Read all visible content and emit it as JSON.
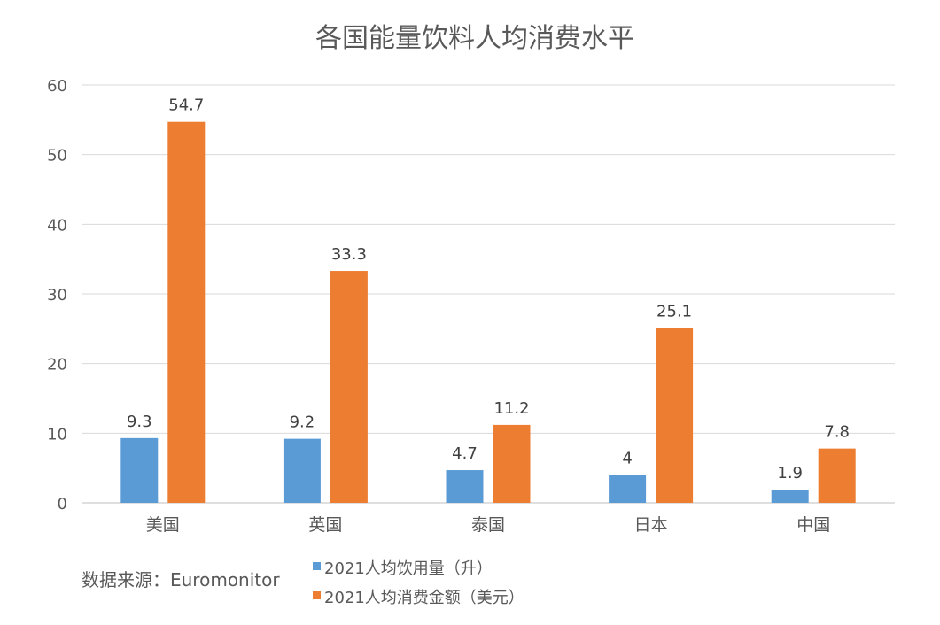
{
  "chart_data": {
    "type": "bar",
    "title": "各国能量饮料人均消费水平",
    "categories": [
      "美国",
      "英国",
      "泰国",
      "日本",
      "中国"
    ],
    "series": [
      {
        "name": "2021人均饮用量（升）",
        "values": [
          9.3,
          9.2,
          4.7,
          4,
          1.9
        ],
        "color": "#5B9BD5"
      },
      {
        "name": "2021人均消费金额（美元）",
        "values": [
          54.7,
          33.3,
          11.2,
          25.1,
          7.8
        ],
        "color": "#ED7D31"
      }
    ],
    "data_labels": [
      [
        "9.3",
        "9.2",
        "4.7",
        "4",
        "1.9"
      ],
      [
        "54.7",
        "33.3",
        "11.2",
        "25.1",
        "7.8"
      ]
    ],
    "yticks": [
      "0",
      "10",
      "20",
      "30",
      "40",
      "50",
      "60"
    ],
    "ylim": [
      0,
      60
    ],
    "grid": true,
    "legend_position": "bottom",
    "xlabel": "",
    "ylabel": ""
  },
  "source_note": "数据来源：Euromonitor"
}
